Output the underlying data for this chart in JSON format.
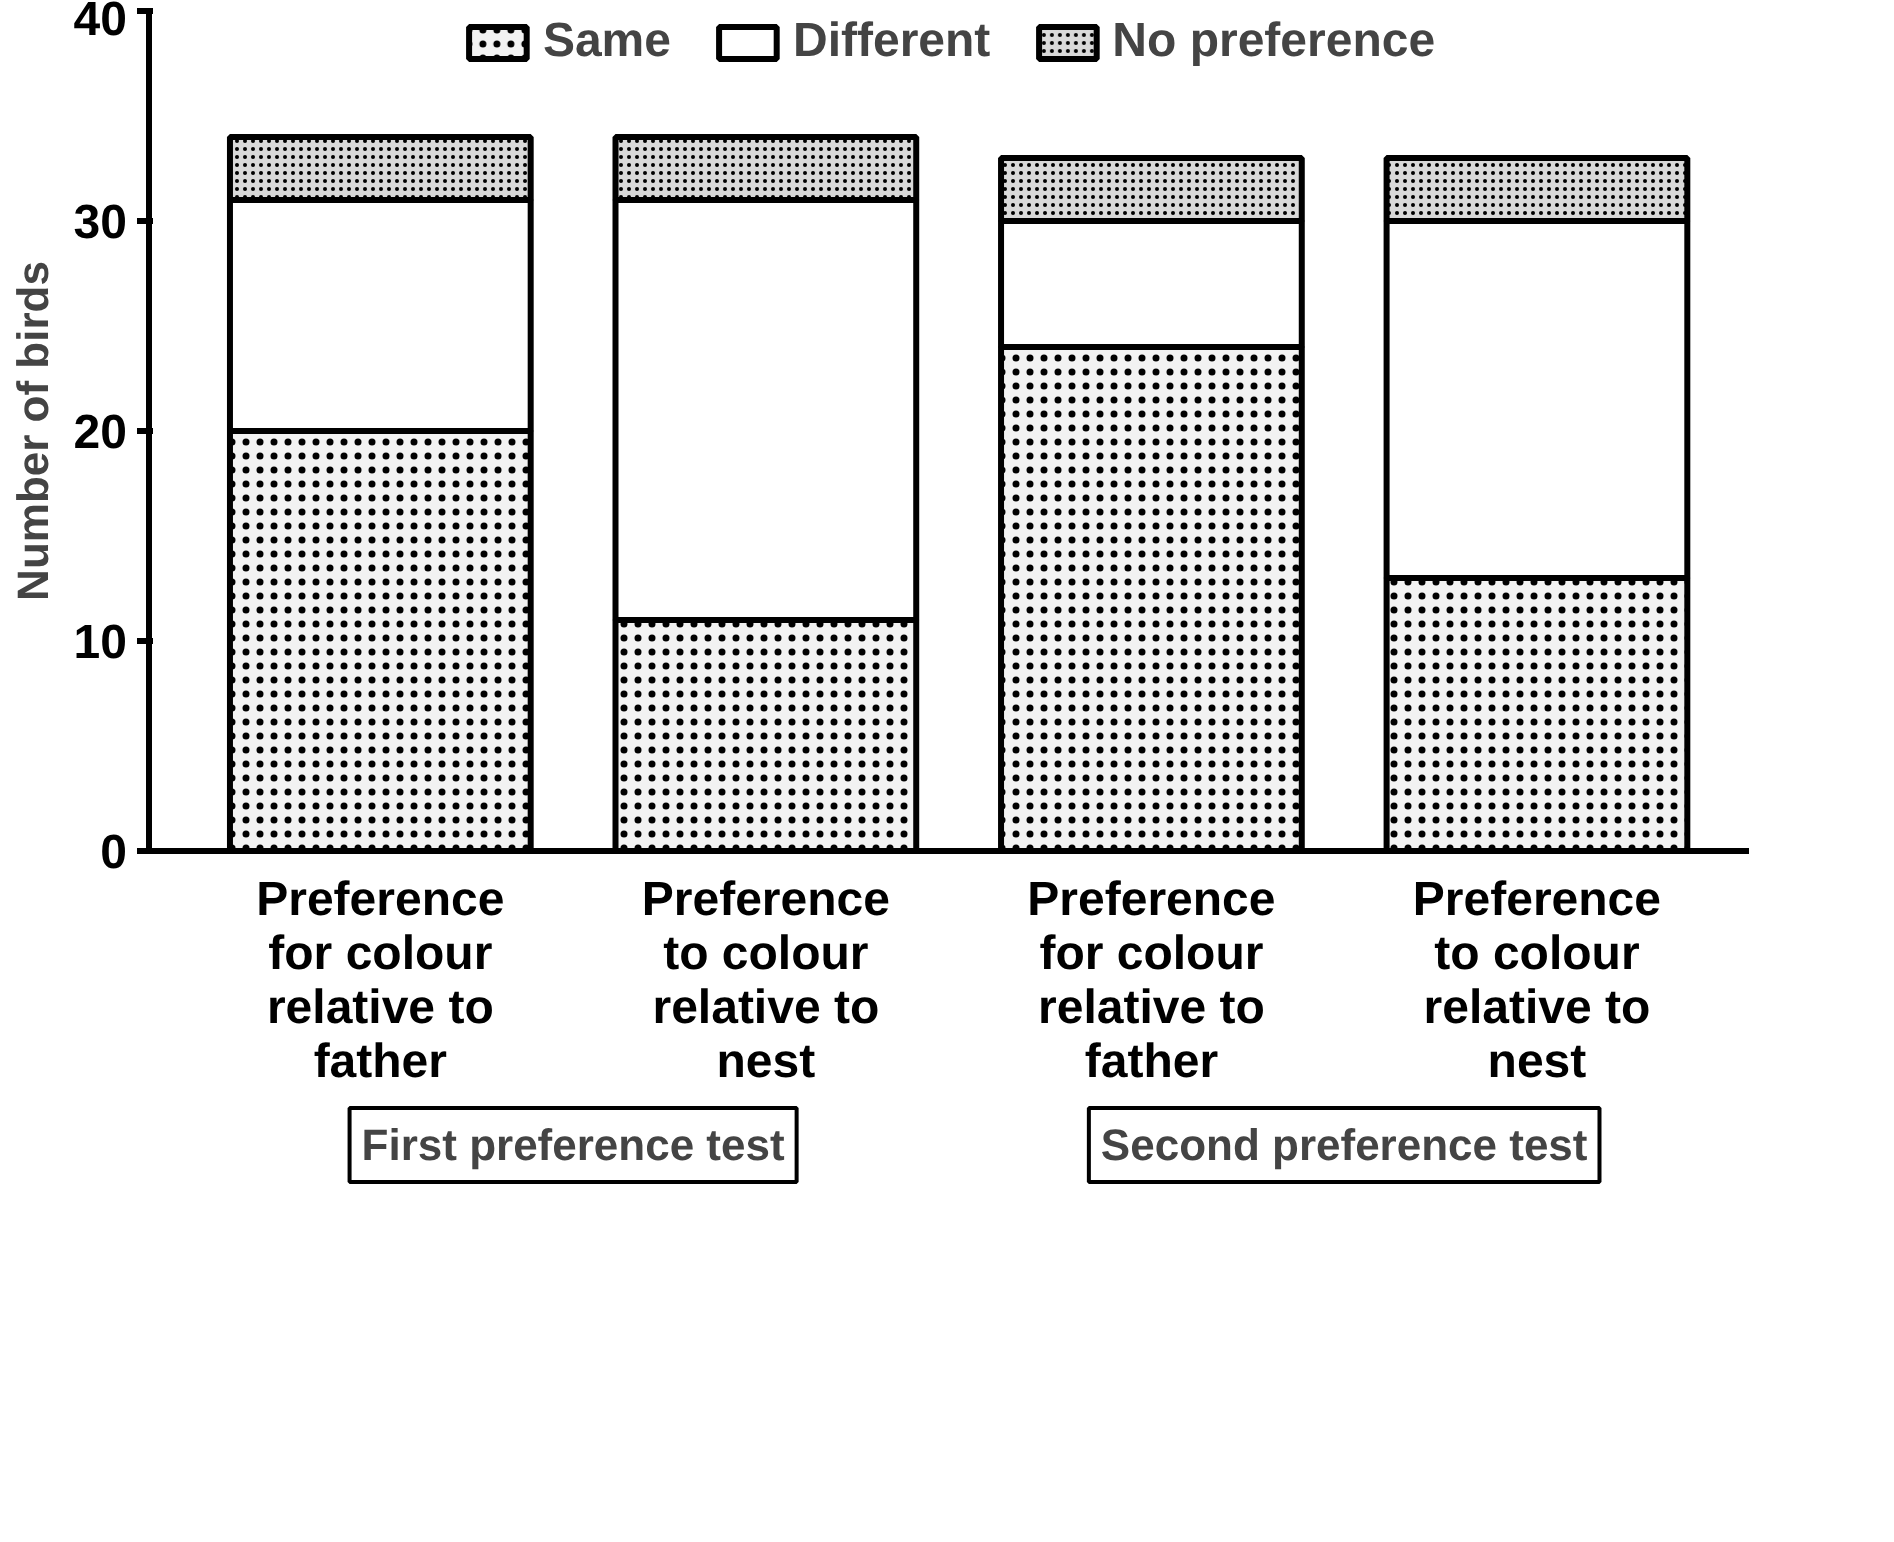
{
  "chart_data": {
    "type": "bar",
    "stacked": true,
    "ylabel": "Number of birds",
    "categories": [
      "Preference for colour relative to father",
      "Preference to colour relative to nest",
      "Preference for colour relative to father",
      "Preference to colour relative to nest"
    ],
    "series": [
      {
        "name": "Same",
        "color": "#f2f2f2",
        "values": [
          20,
          11,
          24,
          13
        ]
      },
      {
        "name": "Different",
        "color": "#ffffff",
        "values": [
          11,
          20,
          6,
          17
        ]
      },
      {
        "name": "No preference",
        "color": "#d9d9d9",
        "values": [
          3,
          3,
          3,
          3
        ]
      }
    ],
    "ylim": [
      0,
      40
    ],
    "yticks": [
      0,
      10,
      20,
      30,
      40
    ],
    "grid": false,
    "legend": "top",
    "annotations": [
      "First preference test",
      "Second preference test"
    ]
  }
}
